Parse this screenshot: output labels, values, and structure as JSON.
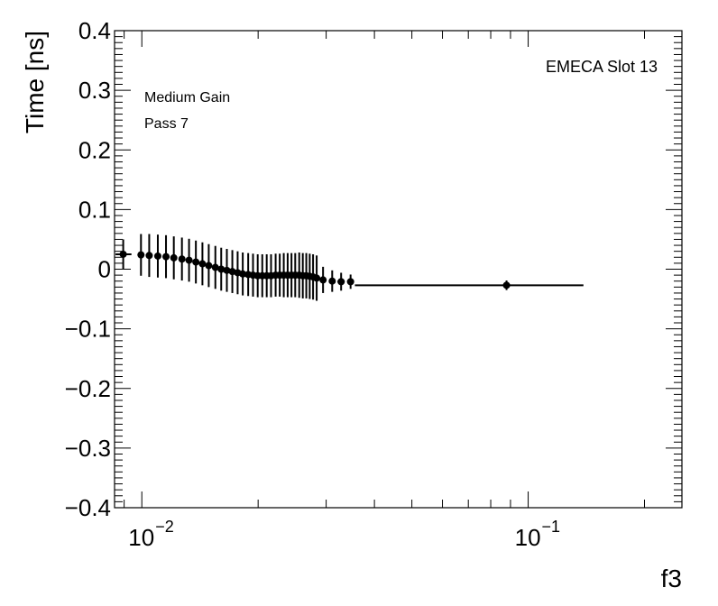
{
  "chart_data": {
    "type": "scatter",
    "xlabel": "f3",
    "ylabel": "Time [ns]",
    "x_scale": "log",
    "xlim": [
      0.0085,
      0.25
    ],
    "ylim": [
      -0.4,
      0.4
    ],
    "y_ticks": [
      -0.4,
      -0.3,
      -0.2,
      -0.1,
      0,
      0.1,
      0.2,
      0.3,
      0.4
    ],
    "y_tick_labels": [
      "−0.4",
      "−0.3",
      "−0.2",
      "−0.1",
      "0",
      "0.1",
      "0.2",
      "0.3",
      "0.4"
    ],
    "x_major_ticks": [
      0.01,
      0.1
    ],
    "x_tick_labels": [
      {
        "base": "10",
        "exp": "−2"
      },
      {
        "base": "10",
        "exp": "−1"
      }
    ],
    "annotations": {
      "slot": "EMECA Slot 13",
      "gain": "Medium Gain",
      "pass": "Pass 7"
    },
    "grid": false,
    "series": [
      {
        "points": [
          {
            "x": 0.00895,
            "xlo": 0.00855,
            "xhi": 0.0094,
            "y": 0.025,
            "err": 0.025
          },
          {
            "x": 0.00995,
            "xlo": 0.00975,
            "xhi": 0.01015,
            "y": 0.024,
            "err": 0.035
          },
          {
            "x": 0.01045,
            "xlo": 0.01025,
            "xhi": 0.01065,
            "y": 0.023,
            "err": 0.036
          },
          {
            "x": 0.011,
            "xlo": 0.0108,
            "xhi": 0.0112,
            "y": 0.022,
            "err": 0.036
          },
          {
            "x": 0.01155,
            "xlo": 0.01135,
            "xhi": 0.01175,
            "y": 0.021,
            "err": 0.036
          },
          {
            "x": 0.0121,
            "xlo": 0.0119,
            "xhi": 0.0123,
            "y": 0.019,
            "err": 0.036
          },
          {
            "x": 0.0127,
            "xlo": 0.0125,
            "xhi": 0.0129,
            "y": 0.017,
            "err": 0.036
          },
          {
            "x": 0.01325,
            "xlo": 0.01305,
            "xhi": 0.01345,
            "y": 0.015,
            "err": 0.036
          },
          {
            "x": 0.0138,
            "xlo": 0.0136,
            "xhi": 0.014,
            "y": 0.012,
            "err": 0.036
          },
          {
            "x": 0.01435,
            "xlo": 0.01415,
            "xhi": 0.01455,
            "y": 0.009,
            "err": 0.036
          },
          {
            "x": 0.0149,
            "xlo": 0.0147,
            "xhi": 0.0151,
            "y": 0.006,
            "err": 0.036
          },
          {
            "x": 0.0155,
            "xlo": 0.0153,
            "xhi": 0.0157,
            "y": 0.003,
            "err": 0.036
          },
          {
            "x": 0.01605,
            "xlo": 0.01585,
            "xhi": 0.01625,
            "y": 0.0,
            "err": 0.036
          },
          {
            "x": 0.0166,
            "xlo": 0.0164,
            "xhi": 0.0168,
            "y": -0.002,
            "err": 0.036
          },
          {
            "x": 0.01715,
            "xlo": 0.01695,
            "xhi": 0.01735,
            "y": -0.004,
            "err": 0.036
          },
          {
            "x": 0.0177,
            "xlo": 0.0175,
            "xhi": 0.0179,
            "y": -0.006,
            "err": 0.036
          },
          {
            "x": 0.01825,
            "xlo": 0.01805,
            "xhi": 0.01845,
            "y": -0.008,
            "err": 0.036
          },
          {
            "x": 0.01885,
            "xlo": 0.01865,
            "xhi": 0.01905,
            "y": -0.009,
            "err": 0.036
          },
          {
            "x": 0.0194,
            "xlo": 0.0192,
            "xhi": 0.0196,
            "y": -0.01,
            "err": 0.036
          },
          {
            "x": 0.01995,
            "xlo": 0.01975,
            "xhi": 0.02015,
            "y": -0.011,
            "err": 0.036
          },
          {
            "x": 0.0205,
            "xlo": 0.0203,
            "xhi": 0.0207,
            "y": -0.011,
            "err": 0.036
          },
          {
            "x": 0.02105,
            "xlo": 0.02085,
            "xhi": 0.02125,
            "y": -0.011,
            "err": 0.036
          },
          {
            "x": 0.0216,
            "xlo": 0.0214,
            "xhi": 0.0218,
            "y": -0.011,
            "err": 0.036
          },
          {
            "x": 0.0222,
            "xlo": 0.022,
            "xhi": 0.0224,
            "y": -0.01,
            "err": 0.036
          },
          {
            "x": 0.02275,
            "xlo": 0.02255,
            "xhi": 0.02295,
            "y": -0.01,
            "err": 0.036
          },
          {
            "x": 0.0233,
            "xlo": 0.0231,
            "xhi": 0.0235,
            "y": -0.01,
            "err": 0.037
          },
          {
            "x": 0.02385,
            "xlo": 0.02365,
            "xhi": 0.02405,
            "y": -0.01,
            "err": 0.037
          },
          {
            "x": 0.0244,
            "xlo": 0.0242,
            "xhi": 0.0246,
            "y": -0.01,
            "err": 0.037
          },
          {
            "x": 0.02495,
            "xlo": 0.02475,
            "xhi": 0.02515,
            "y": -0.01,
            "err": 0.037
          },
          {
            "x": 0.02555,
            "xlo": 0.02535,
            "xhi": 0.02575,
            "y": -0.01,
            "err": 0.038
          },
          {
            "x": 0.0261,
            "xlo": 0.0259,
            "xhi": 0.0263,
            "y": -0.011,
            "err": 0.038
          },
          {
            "x": 0.02665,
            "xlo": 0.02645,
            "xhi": 0.02685,
            "y": -0.011,
            "err": 0.038
          },
          {
            "x": 0.0272,
            "xlo": 0.027,
            "xhi": 0.0274,
            "y": -0.012,
            "err": 0.038
          },
          {
            "x": 0.02775,
            "xlo": 0.02755,
            "xhi": 0.02795,
            "y": -0.013,
            "err": 0.038
          },
          {
            "x": 0.02835,
            "xlo": 0.02815,
            "xhi": 0.02855,
            "y": -0.015,
            "err": 0.038
          },
          {
            "x": 0.02945,
            "xlo": 0.029,
            "xhi": 0.0299,
            "y": -0.018,
            "err": 0.022
          },
          {
            "x": 0.0311,
            "xlo": 0.0305,
            "xhi": 0.0317,
            "y": -0.02,
            "err": 0.018
          },
          {
            "x": 0.0328,
            "xlo": 0.0321,
            "xhi": 0.0335,
            "y": -0.021,
            "err": 0.015
          },
          {
            "x": 0.0347,
            "xlo": 0.034,
            "xhi": 0.0354,
            "y": -0.021,
            "err": 0.012
          },
          {
            "x": 0.0879,
            "xlo": 0.0356,
            "xhi": 0.139,
            "y": -0.027,
            "err": 0.008
          }
        ]
      }
    ]
  }
}
